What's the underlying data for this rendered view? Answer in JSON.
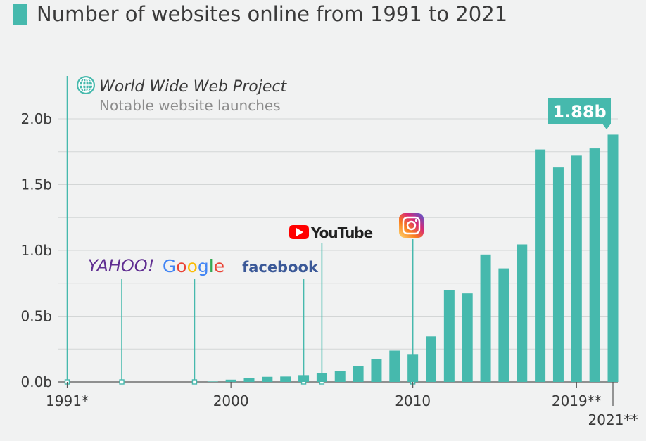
{
  "title": "Number of websites online from 1991 to 2021",
  "legend": {
    "project_label": "World Wide Web Project",
    "launch_label": "Notable website launches"
  },
  "highlight_label": "1.88b",
  "colors": {
    "bar": "#46b9ad",
    "grid": "#d3d6d6",
    "text": "#3a3a3a",
    "muted": "#8c8c8c"
  },
  "launches": [
    {
      "name": "World Wide Web Project",
      "year": 1991,
      "icon": "globe-icon"
    },
    {
      "name": "YAHOO!",
      "year": 1994,
      "icon": "yahoo-logo"
    },
    {
      "name": "Google",
      "year": 1998,
      "icon": "google-logo"
    },
    {
      "name": "facebook",
      "year": 2004,
      "icon": "facebook-logo"
    },
    {
      "name": "YouTube",
      "year": 2005,
      "icon": "youtube-logo"
    },
    {
      "name": "Instagram",
      "year": 2010,
      "icon": "instagram-icon"
    }
  ],
  "chart_data": {
    "type": "bar",
    "x": [
      1991,
      1992,
      1993,
      1994,
      1995,
      1996,
      1997,
      1998,
      1999,
      2000,
      2001,
      2002,
      2003,
      2004,
      2005,
      2006,
      2007,
      2008,
      2009,
      2010,
      2011,
      2012,
      2013,
      2014,
      2015,
      2016,
      2017,
      2018,
      2019,
      2020,
      2021
    ],
    "values": [
      1e-06,
      1e-05,
      0.00013,
      0.0028,
      0.023,
      0.26,
      1.1,
      2.4,
      3.2,
      17.1,
      29.3,
      38.8,
      40.9,
      51.6,
      64.8,
      85.5,
      121.9,
      172.3,
      238.0,
      206.9,
      346.0,
      697.1,
      672.9,
      968.9,
      863.1,
      1045.5,
      1766.9,
      1630.3,
      1720.0,
      1775.0,
      1880.0
    ],
    "value_unit": "millions",
    "ylim": [
      0,
      2000
    ],
    "yticks": [
      {
        "value": 0,
        "label": "0.0b"
      },
      {
        "value": 500,
        "label": "0.5b"
      },
      {
        "value": 1000,
        "label": "1.0b"
      },
      {
        "value": 1500,
        "label": "1.5b"
      },
      {
        "value": 2000,
        "label": "2.0b"
      }
    ],
    "xticks": [
      {
        "year": 1991,
        "label": "1991*"
      },
      {
        "year": 2000,
        "label": "2000"
      },
      {
        "year": 2010,
        "label": "2010"
      },
      {
        "year": 2019,
        "label": "2019**"
      },
      {
        "year": 2021,
        "label": "2021**"
      }
    ],
    "title": "Number of websites online from 1991 to 2021",
    "xlabel": "",
    "ylabel": "",
    "grid": true,
    "legend": "top-left"
  }
}
